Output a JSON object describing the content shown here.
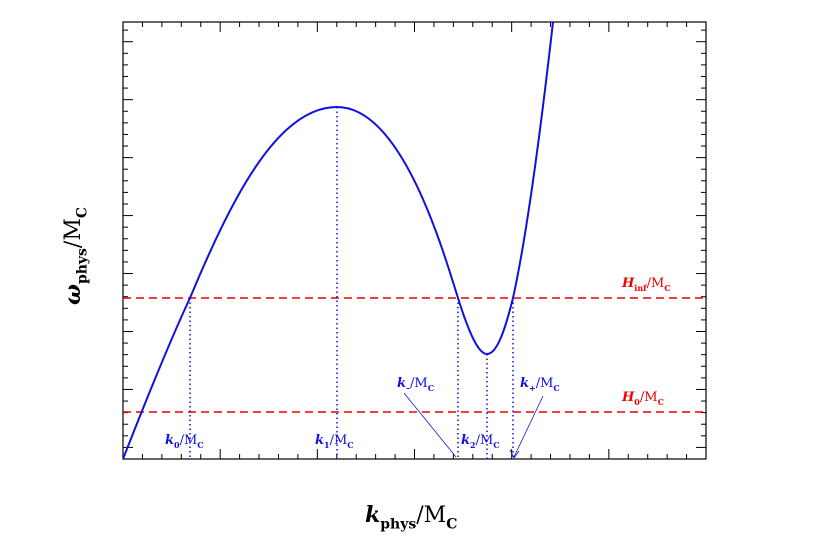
{
  "x_label": {
    "symbol": "k",
    "sub": "phys",
    "unit": "/M",
    "unit_sub": "C"
  },
  "y_label": {
    "symbol": "ω",
    "sub": "phys",
    "unit": "/M",
    "unit_sub": "C"
  },
  "annotations": [
    {
      "symbol": "k",
      "sub": "0",
      "unit": "/M",
      "unit_sub": "C"
    },
    {
      "symbol": "k",
      "sub": "1",
      "unit": "/M",
      "unit_sub": "C"
    },
    {
      "symbol": "k",
      "sub": "–",
      "unit": "/M",
      "unit_sub": "C"
    },
    {
      "symbol": "k",
      "sub": "2",
      "unit": "/M",
      "unit_sub": "C"
    },
    {
      "symbol": "k",
      "sub": "+",
      "unit": "/M",
      "unit_sub": "C"
    }
  ],
  "levels": [
    {
      "symbol": "H",
      "sub": "inf",
      "unit": "/M",
      "unit_sub": "C"
    },
    {
      "symbol": "H",
      "sub": "0",
      "unit": "/M",
      "unit_sub": "C"
    }
  ]
}
